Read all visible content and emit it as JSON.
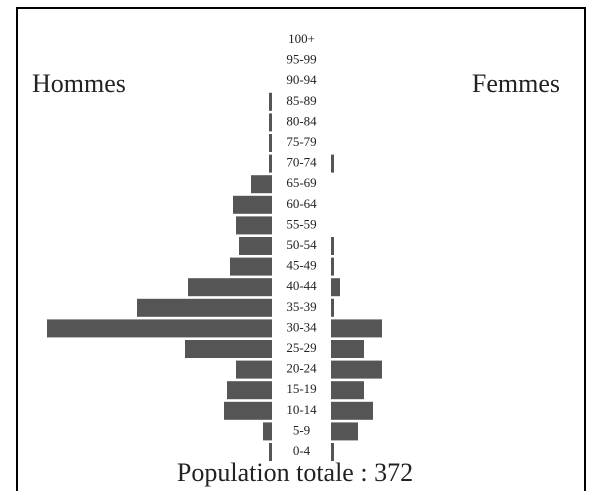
{
  "chart_data": {
    "type": "pyramid",
    "left_label": "Hommes",
    "right_label": "Femmes",
    "footer": "Population totale : 372",
    "categories": [
      "0-4",
      "5-9",
      "10-14",
      "15-19",
      "20-24",
      "25-29",
      "30-34",
      "35-39",
      "40-44",
      "45-49",
      "50-54",
      "55-59",
      "60-64",
      "65-69",
      "70-74",
      "75-79",
      "80-84",
      "85-89",
      "90-94",
      "95-99",
      "100+"
    ],
    "series": [
      {
        "name": "Hommes",
        "color": "#555555",
        "values": [
          1,
          3,
          16,
          15,
          12,
          29,
          75,
          45,
          28,
          14,
          11,
          12,
          13,
          7,
          1,
          1,
          1,
          1,
          0,
          0,
          0
        ]
      },
      {
        "name": "Femmes",
        "color": "#555555",
        "values": [
          1,
          9,
          14,
          11,
          17,
          11,
          17,
          1,
          3,
          1,
          1,
          0,
          0,
          0,
          1,
          0,
          0,
          0,
          0,
          0,
          0
        ]
      }
    ]
  }
}
